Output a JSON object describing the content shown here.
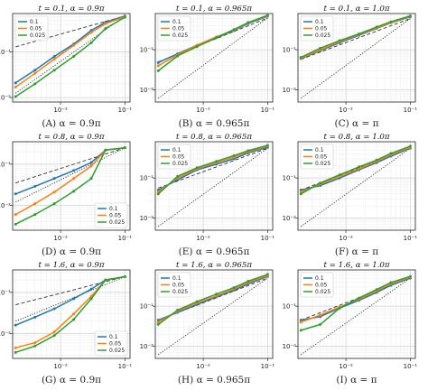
{
  "colors": {
    "series": [
      "#1f77b4",
      "#ff7f0e",
      "#2ca02c"
    ],
    "reference": "#333333",
    "grid_major": "#d0d0d0",
    "grid_minor": "#ececec"
  },
  "chart_data": [
    {
      "type": "line",
      "title": "t = 0.1, α = 0.9π",
      "caption": "(A) α = 0.9π",
      "xscale": "log",
      "yscale": "log",
      "xlim": [
        0.0018,
        0.12
      ],
      "ylim": [
        0.008,
        0.7
      ],
      "grid": true,
      "xticks": [
        {
          "value": 0.01,
          "label": "10⁻²"
        },
        {
          "value": 0.1,
          "label": "10⁻¹"
        }
      ],
      "yticks": [
        {
          "value": 0.01,
          "label": "10⁻²"
        },
        {
          "value": 0.1,
          "label": "10⁻¹"
        }
      ],
      "legend": {
        "position": "upper-left",
        "entries": [
          "0.1",
          "0.05",
          "0.025"
        ]
      },
      "x": [
        0.002,
        0.004,
        0.008,
        0.016,
        0.03,
        0.05,
        0.1
      ],
      "series": [
        {
          "name": "0.1",
          "values": [
            0.021,
            0.04,
            0.08,
            0.15,
            0.3,
            0.45,
            0.62
          ]
        },
        {
          "name": "0.05",
          "values": [
            0.017,
            0.034,
            0.07,
            0.14,
            0.27,
            0.42,
            0.6
          ]
        },
        {
          "name": "0.025",
          "values": [
            0.0105,
            0.02,
            0.04,
            0.08,
            0.16,
            0.33,
            0.58
          ]
        }
      ],
      "reference_lines": [
        {
          "style": "dashed",
          "points": [
            [
              0.002,
              0.13
            ],
            [
              0.1,
              0.62
            ]
          ]
        },
        {
          "style": "dotted",
          "points": [
            [
              0.002,
              0.0125
            ],
            [
              0.1,
              0.62
            ]
          ]
        }
      ]
    },
    {
      "type": "line",
      "title": "t = 0.1, α = 0.965π",
      "caption": "(B) α = 0.965π",
      "xscale": "log",
      "yscale": "log",
      "xlim": [
        0.0018,
        0.12
      ],
      "ylim": [
        0.005,
        0.8
      ],
      "grid": true,
      "xticks": [
        {
          "value": 0.01,
          "label": "10⁻²"
        },
        {
          "value": 0.1,
          "label": "10⁻¹"
        }
      ],
      "yticks": [
        {
          "value": 0.01,
          "label": "10⁻²"
        },
        {
          "value": 0.1,
          "label": "10⁻¹"
        }
      ],
      "legend": {
        "position": "upper-left",
        "entries": [
          "0.1",
          "0.05",
          "0.025"
        ]
      },
      "x": [
        0.002,
        0.004,
        0.008,
        0.016,
        0.03,
        0.05,
        0.1
      ],
      "series": [
        {
          "name": "0.1",
          "values": [
            0.048,
            0.08,
            0.13,
            0.2,
            0.3,
            0.45,
            0.68
          ]
        },
        {
          "name": "0.05",
          "values": [
            0.04,
            0.075,
            0.13,
            0.21,
            0.31,
            0.47,
            0.7
          ]
        },
        {
          "name": "0.025",
          "values": [
            0.03,
            0.07,
            0.12,
            0.2,
            0.32,
            0.48,
            0.72
          ]
        }
      ],
      "reference_lines": [
        {
          "style": "dashed",
          "points": [
            [
              0.002,
              0.05
            ],
            [
              0.1,
              0.62
            ]
          ]
        },
        {
          "style": "dotted",
          "points": [
            [
              0.002,
              0.0062
            ],
            [
              0.1,
              0.62
            ]
          ]
        }
      ]
    },
    {
      "type": "line",
      "title": "t = 0.1, α = 1.0π",
      "caption": "(C) α = π",
      "xscale": "log",
      "yscale": "log",
      "xlim": [
        0.0018,
        0.12
      ],
      "ylim": [
        0.005,
        0.8
      ],
      "grid": true,
      "xticks": [
        {
          "value": 0.01,
          "label": "10⁻²"
        },
        {
          "value": 0.1,
          "label": "10⁻¹"
        }
      ],
      "yticks": [
        {
          "value": 0.01,
          "label": "10⁻²"
        },
        {
          "value": 0.1,
          "label": "10⁻¹"
        }
      ],
      "legend": {
        "position": "upper-left",
        "entries": [
          "0.1",
          "0.05",
          "0.025"
        ]
      },
      "x": [
        0.002,
        0.004,
        0.008,
        0.016,
        0.03,
        0.05,
        0.1
      ],
      "series": [
        {
          "name": "0.1",
          "values": [
            0.06,
            0.095,
            0.15,
            0.23,
            0.34,
            0.47,
            0.66
          ]
        },
        {
          "name": "0.05",
          "values": [
            0.062,
            0.1,
            0.16,
            0.24,
            0.35,
            0.48,
            0.68
          ]
        },
        {
          "name": "0.025",
          "values": [
            0.065,
            0.11,
            0.17,
            0.25,
            0.37,
            0.5,
            0.7
          ]
        }
      ],
      "reference_lines": [
        {
          "style": "dashed",
          "points": [
            [
              0.002,
              0.058
            ],
            [
              0.1,
              0.6
            ]
          ]
        },
        {
          "style": "dotted",
          "points": [
            [
              0.002,
              0.0062
            ],
            [
              0.1,
              0.6
            ]
          ]
        }
      ]
    },
    {
      "type": "line",
      "title": "t = 0.8, α = 0.9π",
      "caption": "(D) α = 0.9π",
      "xscale": "log",
      "yscale": "log",
      "xlim": [
        0.0018,
        0.12
      ],
      "ylim": [
        0.0025,
        0.35
      ],
      "grid": true,
      "xticks": [
        {
          "value": 0.01,
          "label": "10⁻²"
        },
        {
          "value": 0.1,
          "label": "10⁻¹"
        }
      ],
      "yticks": [
        {
          "value": 0.001,
          "label": "10⁻³"
        },
        {
          "value": 0.01,
          "label": "10⁻²"
        },
        {
          "value": 0.1,
          "label": "10⁻¹"
        }
      ],
      "legend": {
        "position": "lower-right",
        "entries": [
          "0.1",
          "0.05",
          "0.025"
        ]
      },
      "x": [
        0.002,
        0.004,
        0.008,
        0.016,
        0.03,
        0.05,
        0.1
      ],
      "series": [
        {
          "name": "0.1",
          "values": [
            0.019,
            0.029,
            0.045,
            0.07,
            0.11,
            0.22,
            0.25
          ]
        },
        {
          "name": "0.05",
          "values": [
            0.006,
            0.011,
            0.021,
            0.045,
            0.09,
            0.22,
            0.25
          ]
        },
        {
          "name": "0.025",
          "values": [
            0.0035,
            0.006,
            0.011,
            0.022,
            0.045,
            0.22,
            0.25
          ]
        }
      ],
      "reference_lines": [
        {
          "style": "dashed",
          "points": [
            [
              0.002,
              0.035
            ],
            [
              0.1,
              0.25
            ]
          ]
        },
        {
          "style": "dotted",
          "points": [
            [
              0.002,
              0.012
            ],
            [
              0.1,
              0.25
            ]
          ]
        }
      ]
    },
    {
      "type": "line",
      "title": "t = 0.8, α = 0.965π",
      "caption": "(E) α = 0.965π",
      "xscale": "log",
      "yscale": "log",
      "xlim": [
        0.0018,
        0.12
      ],
      "ylim": [
        0.005,
        0.8
      ],
      "grid": true,
      "xticks": [
        {
          "value": 0.01,
          "label": "10⁻²"
        },
        {
          "value": 0.1,
          "label": "10⁻¹"
        }
      ],
      "yticks": [
        {
          "value": 0.01,
          "label": "10⁻²"
        },
        {
          "value": 0.1,
          "label": "10⁻¹"
        }
      ],
      "legend": {
        "position": "upper-left",
        "entries": [
          "0.1",
          "0.05",
          "0.025"
        ]
      },
      "x": [
        0.002,
        0.004,
        0.008,
        0.016,
        0.03,
        0.05,
        0.1
      ],
      "series": [
        {
          "name": "0.1",
          "values": [
            0.05,
            0.09,
            0.16,
            0.22,
            0.3,
            0.42,
            0.58
          ]
        },
        {
          "name": "0.05",
          "values": [
            0.045,
            0.1,
            0.17,
            0.24,
            0.33,
            0.45,
            0.62
          ]
        },
        {
          "name": "0.025",
          "values": [
            0.04,
            0.11,
            0.18,
            0.26,
            0.36,
            0.48,
            0.65
          ]
        }
      ],
      "reference_lines": [
        {
          "style": "dashed",
          "points": [
            [
              0.002,
              0.056
            ],
            [
              0.1,
              0.55
            ]
          ]
        },
        {
          "style": "dotted",
          "points": [
            [
              0.002,
              0.0062
            ],
            [
              0.1,
              0.55
            ]
          ]
        }
      ]
    },
    {
      "type": "line",
      "title": "t = 0.8, α = 1.0π",
      "caption": "(F) α = π",
      "xscale": "log",
      "yscale": "log",
      "xlim": [
        0.0018,
        0.12
      ],
      "ylim": [
        0.005,
        0.8
      ],
      "grid": true,
      "xticks": [
        {
          "value": 0.01,
          "label": "10⁻²"
        },
        {
          "value": 0.1,
          "label": "10⁻¹"
        }
      ],
      "yticks": [
        {
          "value": 0.01,
          "label": "10⁻²"
        },
        {
          "value": 0.1,
          "label": "10⁻¹"
        }
      ],
      "legend": {
        "position": "upper-left",
        "entries": [
          "0.1",
          "0.05",
          "0.025"
        ]
      },
      "x": [
        0.002,
        0.004,
        0.008,
        0.016,
        0.03,
        0.05,
        0.1
      ],
      "series": [
        {
          "name": "0.1",
          "values": [
            0.05,
            0.065,
            0.1,
            0.16,
            0.24,
            0.35,
            0.55
          ]
        },
        {
          "name": "0.05",
          "values": [
            0.045,
            0.07,
            0.11,
            0.17,
            0.26,
            0.38,
            0.58
          ]
        },
        {
          "name": "0.025",
          "values": [
            0.04,
            0.075,
            0.12,
            0.19,
            0.28,
            0.41,
            0.62
          ]
        }
      ],
      "reference_lines": [
        {
          "style": "dashed",
          "points": [
            [
              0.002,
              0.05
            ],
            [
              0.1,
              0.55
            ]
          ]
        },
        {
          "style": "dotted",
          "points": [
            [
              0.002,
              0.0062
            ],
            [
              0.1,
              0.55
            ]
          ]
        }
      ]
    },
    {
      "type": "line",
      "title": "t = 1.6, α = 0.9π",
      "caption": "(G) α = 0.9π",
      "xscale": "log",
      "yscale": "log",
      "xlim": [
        0.0018,
        0.12
      ],
      "ylim": [
        0.0025,
        0.35
      ],
      "grid": true,
      "xticks": [
        {
          "value": 0.01,
          "label": "10⁻²"
        },
        {
          "value": 0.1,
          "label": "10⁻¹"
        }
      ],
      "yticks": [
        {
          "value": 0.001,
          "label": "10⁻³"
        },
        {
          "value": 0.01,
          "label": "10⁻²"
        },
        {
          "value": 0.1,
          "label": "10⁻¹"
        }
      ],
      "legend": {
        "position": "lower-right",
        "entries": [
          "0.1",
          "0.05",
          "0.025"
        ]
      },
      "x": [
        0.002,
        0.004,
        0.008,
        0.016,
        0.03,
        0.05,
        0.1
      ],
      "series": [
        {
          "name": "0.1",
          "values": [
            0.016,
            0.025,
            0.04,
            0.07,
            0.12,
            0.2,
            0.24
          ]
        },
        {
          "name": "0.05",
          "values": [
            0.0045,
            0.006,
            0.011,
            0.03,
            0.08,
            0.2,
            0.24
          ]
        },
        {
          "name": "0.025",
          "values": [
            0.0035,
            0.005,
            0.009,
            0.022,
            0.07,
            0.2,
            0.24
          ]
        }
      ],
      "reference_lines": [
        {
          "style": "dashed",
          "points": [
            [
              0.002,
              0.05
            ],
            [
              0.1,
              0.24
            ]
          ]
        },
        {
          "style": "dotted",
          "points": [
            [
              0.002,
              0.02
            ],
            [
              0.1,
              0.24
            ]
          ]
        }
      ]
    },
    {
      "type": "line",
      "title": "t = 1.6, α = 0.965π",
      "caption": "(H) α = 0.965π",
      "xscale": "log",
      "yscale": "log",
      "xlim": [
        0.0018,
        0.12
      ],
      "ylim": [
        0.005,
        0.8
      ],
      "grid": true,
      "xticks": [
        {
          "value": 0.01,
          "label": "10⁻²"
        },
        {
          "value": 0.1,
          "label": "10⁻¹"
        }
      ],
      "yticks": [
        {
          "value": 0.01,
          "label": "10⁻²"
        },
        {
          "value": 0.1,
          "label": "10⁻¹"
        }
      ],
      "legend": {
        "position": "upper-left",
        "entries": [
          "0.1",
          "0.05",
          "0.025"
        ]
      },
      "x": [
        0.002,
        0.004,
        0.008,
        0.016,
        0.03,
        0.05,
        0.1
      ],
      "series": [
        {
          "name": "0.1",
          "values": [
            0.045,
            0.07,
            0.11,
            0.17,
            0.25,
            0.36,
            0.55
          ]
        },
        {
          "name": "0.05",
          "values": [
            0.04,
            0.075,
            0.12,
            0.18,
            0.27,
            0.39,
            0.58
          ]
        },
        {
          "name": "0.025",
          "values": [
            0.035,
            0.08,
            0.13,
            0.2,
            0.29,
            0.42,
            0.62
          ]
        }
      ],
      "reference_lines": [
        {
          "style": "dashed",
          "points": [
            [
              0.002,
              0.045
            ],
            [
              0.1,
              0.5
            ]
          ]
        },
        {
          "style": "dotted",
          "points": [
            [
              0.002,
              0.0062
            ],
            [
              0.1,
              0.5
            ]
          ]
        }
      ]
    },
    {
      "type": "line",
      "title": "t = 1.6, α = 1.0π",
      "caption": "(I) α = π",
      "xscale": "log",
      "yscale": "log",
      "xlim": [
        0.0018,
        0.12
      ],
      "ylim": [
        0.005,
        0.8
      ],
      "grid": true,
      "xticks": [
        {
          "value": 0.01,
          "label": "10⁻²"
        },
        {
          "value": 0.1,
          "label": "10⁻¹"
        }
      ],
      "yticks": [
        {
          "value": 0.01,
          "label": "10⁻²"
        },
        {
          "value": 0.1,
          "label": "10⁻¹"
        }
      ],
      "legend": {
        "position": "upper-left",
        "entries": [
          "0.1",
          "0.05",
          "0.025"
        ]
      },
      "x": [
        0.002,
        0.004,
        0.008,
        0.016,
        0.03,
        0.05,
        0.1
      ],
      "series": [
        {
          "name": "0.1",
          "values": [
            0.045,
            0.055,
            0.09,
            0.14,
            0.22,
            0.33,
            0.5
          ]
        },
        {
          "name": "0.05",
          "values": [
            0.04,
            0.06,
            0.095,
            0.15,
            0.24,
            0.36,
            0.53
          ]
        },
        {
          "name": "0.025",
          "values": [
            0.025,
            0.035,
            0.09,
            0.16,
            0.26,
            0.39,
            0.55
          ]
        }
      ],
      "reference_lines": [
        {
          "style": "dashed",
          "points": [
            [
              0.002,
              0.045
            ],
            [
              0.1,
              0.5
            ]
          ]
        },
        {
          "style": "dotted",
          "points": [
            [
              0.002,
              0.0062
            ],
            [
              0.1,
              0.5
            ]
          ]
        }
      ]
    }
  ]
}
